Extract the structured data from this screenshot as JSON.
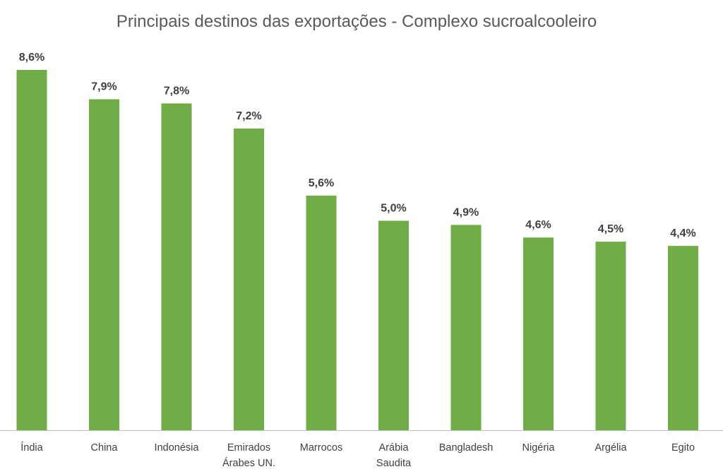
{
  "chart_data": {
    "type": "bar",
    "title": "Principais destinos das exportações - Complexo sucroalcooleiro",
    "categories": [
      "Índia",
      "China",
      "Indonésia",
      "Emirados Árabes UN.",
      "Marrocos",
      "Arábia Saudita",
      "Bangladesh",
      "Nigéria",
      "Argélia",
      "Egito"
    ],
    "category_lines": [
      [
        "Índia"
      ],
      [
        "China"
      ],
      [
        "Indonésia"
      ],
      [
        "Emirados",
        "Árabes UN."
      ],
      [
        "Marrocos"
      ],
      [
        "Arábia",
        "Saudita"
      ],
      [
        "Bangladesh"
      ],
      [
        "Nigéria"
      ],
      [
        "Argélia"
      ],
      [
        "Egito"
      ]
    ],
    "values": [
      8.6,
      7.9,
      7.8,
      7.2,
      5.6,
      5.0,
      4.9,
      4.6,
      4.5,
      4.4
    ],
    "data_labels": [
      "8,6%",
      "7,9%",
      "7,8%",
      "7,2%",
      "5,6%",
      "5,0%",
      "4,9%",
      "4,6%",
      "4,5%",
      "4,4%"
    ],
    "xlabel": "",
    "ylabel": "",
    "unit": "%",
    "ylim": [
      0,
      8.6
    ],
    "grid": false,
    "legend": "none",
    "bar_color": "#70ad47"
  }
}
